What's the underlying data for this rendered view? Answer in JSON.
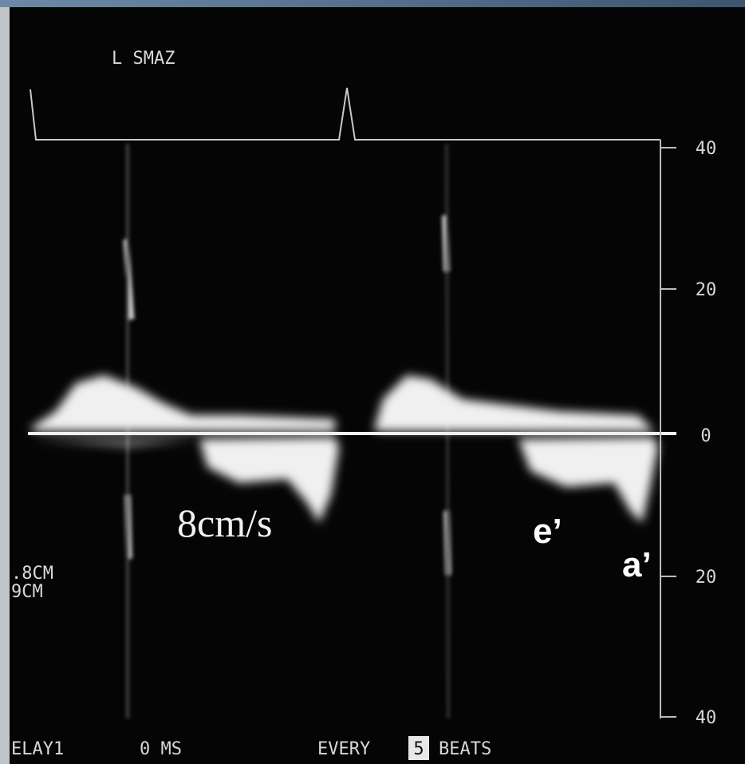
{
  "header": {
    "label": "L SMAZ"
  },
  "scale": {
    "labels": [
      "40",
      "20",
      "0",
      "20",
      "40"
    ]
  },
  "annotations": {
    "velocity": "8cm/s",
    "e_wave": "e’",
    "a_wave": "a’"
  },
  "side_labels": [
    ".8CM",
    "9CM"
  ],
  "footer": {
    "delay": "ELAY1",
    "ms": "0 MS",
    "every": "EVERY",
    "count": "5",
    "beats": "BEATS"
  }
}
